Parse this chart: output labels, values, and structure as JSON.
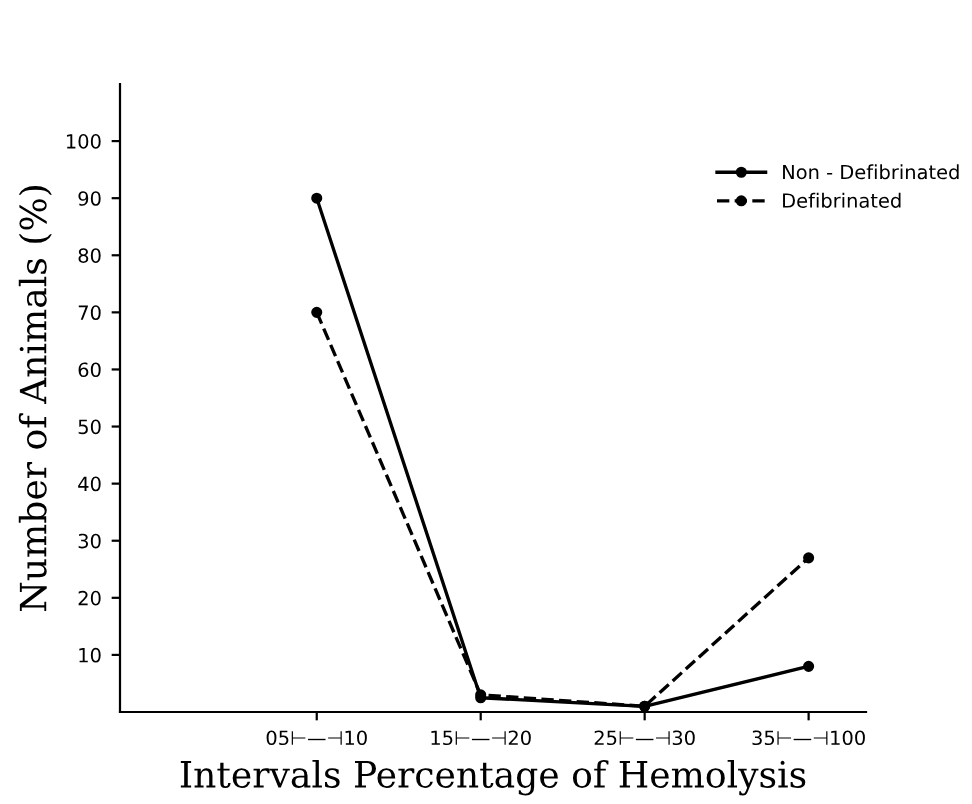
{
  "chart_data": {
    "type": "line",
    "xlabel": "Intervals Percentage of Hemolysis",
    "ylabel": "Number of Animals (%)",
    "categories": [
      "05⊢—⊣10",
      "15⊢—⊣20",
      "25⊢—⊣30",
      "35⊢—⊣100"
    ],
    "series": [
      {
        "name": "Non - Defibrinated",
        "color": "#000000",
        "line_style": "solid",
        "values": [
          90,
          2.5,
          1,
          8
        ]
      },
      {
        "name": "Defibrinated",
        "color": "#000000",
        "line_style": "dashed",
        "values": [
          70,
          3,
          1,
          27
        ]
      }
    ],
    "ylim": [
      0,
      110
    ],
    "yticks": [
      10,
      20,
      30,
      40,
      50,
      60,
      70,
      80,
      90,
      100
    ],
    "marker": "circle",
    "legend": "top right",
    "grid": false
  }
}
